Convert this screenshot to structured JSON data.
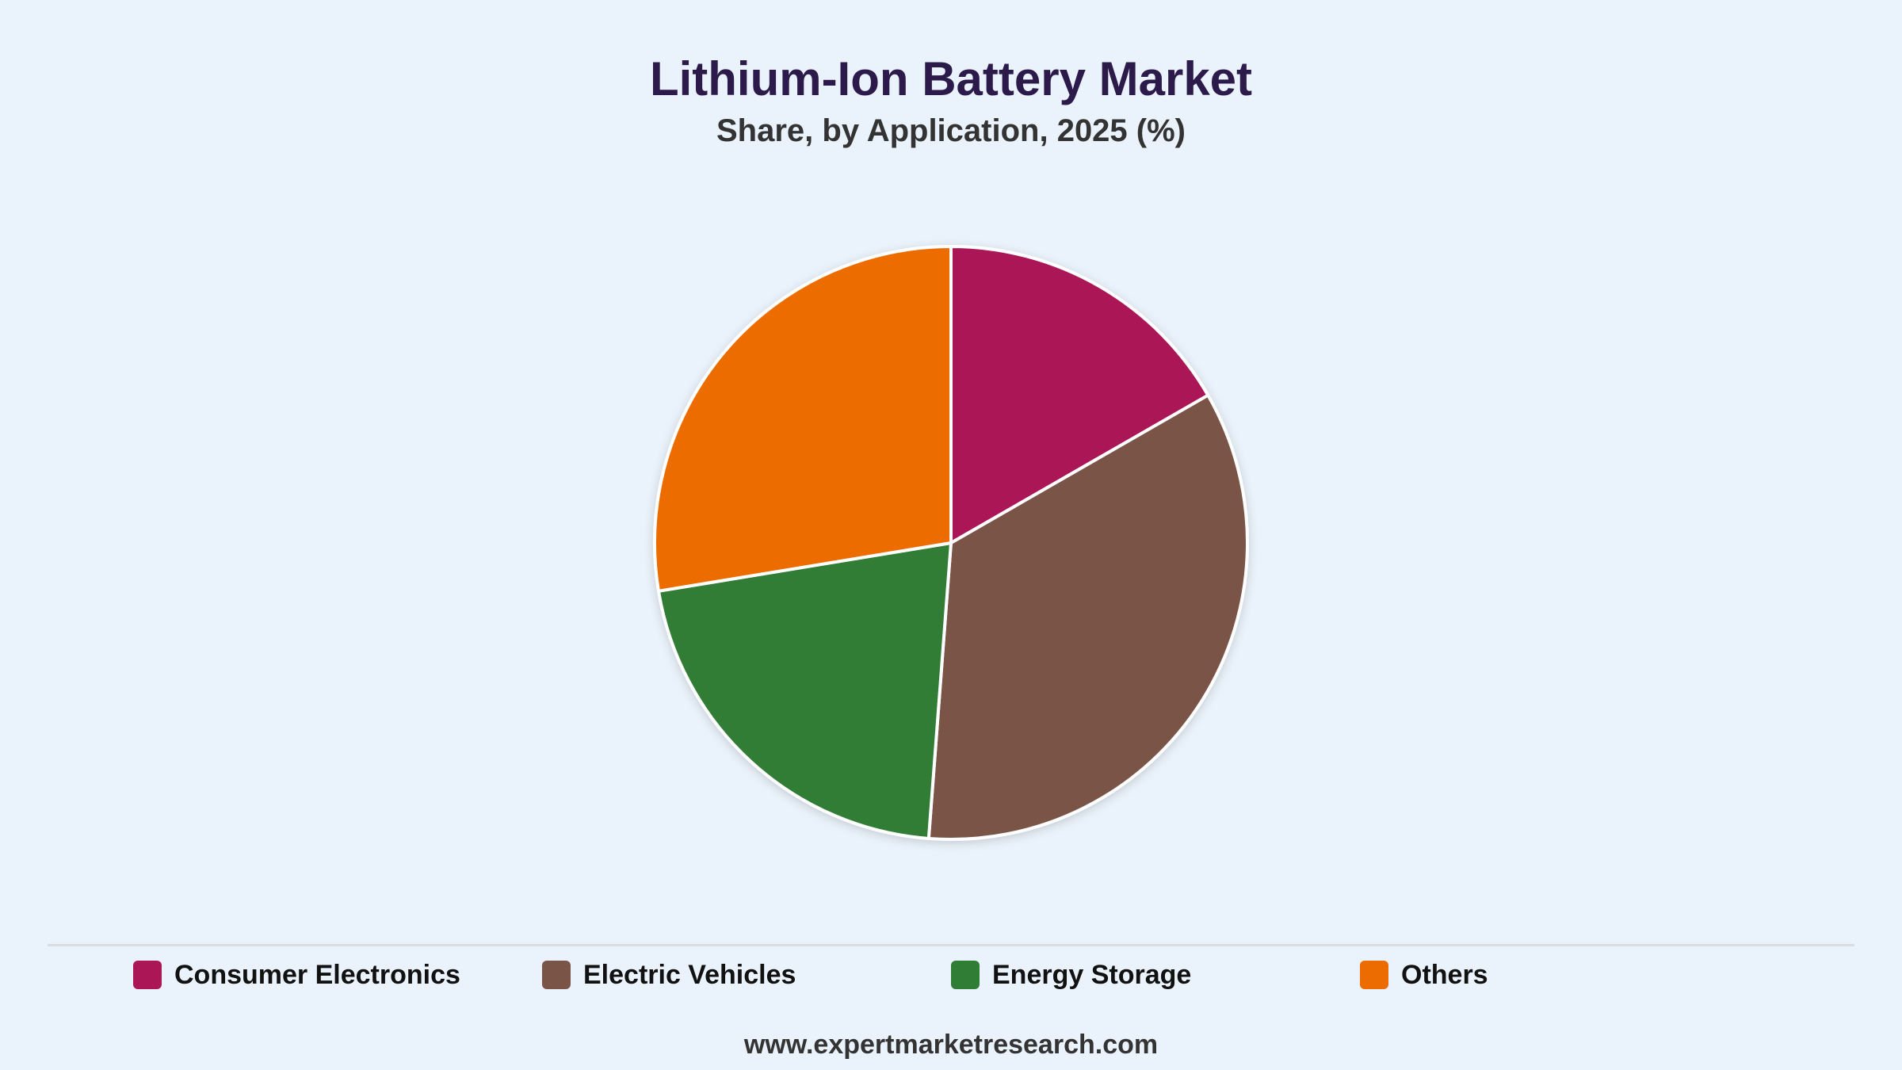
{
  "chart_data": {
    "type": "pie",
    "title": "Lithium-Ion Battery Market",
    "subtitle": "Share, by Application, 2025 (%)",
    "categories": [
      "Consumer Electronics",
      "Electric Vehicles",
      "Energy Storage",
      "Others"
    ],
    "values": [
      16.7,
      34.5,
      21.2,
      27.6
    ],
    "colors": [
      "#ab1656",
      "#7a5547",
      "#307d36",
      "#ec6c02"
    ],
    "start_angle_deg": 0,
    "direction": "clockwise",
    "legend": "bottom"
  },
  "footer": "www.expertmarketresearch.com"
}
